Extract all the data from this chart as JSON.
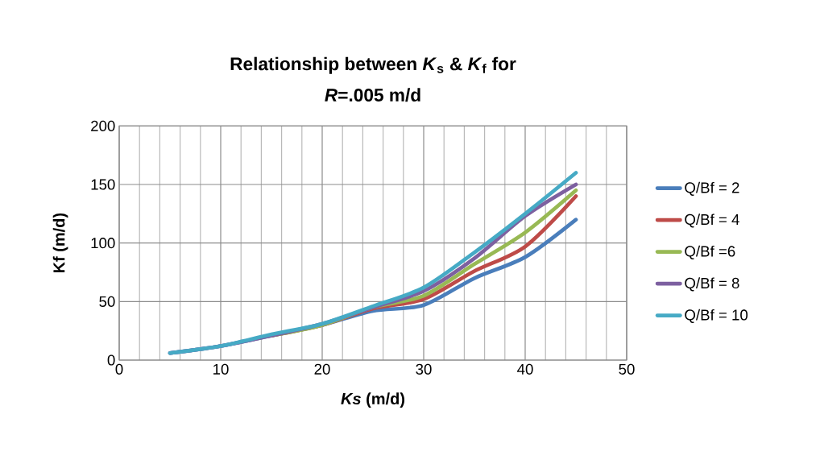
{
  "chart_data": {
    "type": "line",
    "title": "Relationship between *K*$_{s}$ & *K*$_{f}$ for",
    "subtitle": "*R*=.005 m/d",
    "xlabel": "*Ks*  (m/d)",
    "ylabel": "Kf (m/d)",
    "x": [
      5,
      10,
      15,
      20,
      25,
      30,
      35,
      40,
      45
    ],
    "series": [
      {
        "name": "Q/Bf = 2",
        "color": "#4a7ebb",
        "values": [
          6,
          12,
          21,
          30,
          42,
          47,
          70,
          88,
          120
        ]
      },
      {
        "name": "Q/Bf = 4",
        "color": "#be4b48",
        "values": [
          null,
          null,
          21,
          30,
          44,
          52,
          76,
          97,
          140
        ]
      },
      {
        "name": "Q/Bf =6",
        "color": "#98b954",
        "values": [
          null,
          null,
          21,
          30,
          45,
          55,
          82,
          109,
          145
        ]
      },
      {
        "name": "Q/Bf = 8",
        "color": "#7d60a0",
        "values": [
          6,
          12,
          21,
          31,
          45,
          59,
          87,
          123,
          150
        ]
      },
      {
        "name": "Q/Bf = 10",
        "color": "#46aac5",
        "values": [
          6,
          12,
          22,
          31,
          46,
          62,
          92,
          125,
          160
        ]
      }
    ],
    "xlim": [
      0,
      50
    ],
    "xticks": [
      0,
      10,
      20,
      30,
      40,
      50
    ],
    "ylim": [
      0,
      200
    ],
    "yticks": [
      0,
      50,
      100,
      150,
      200
    ],
    "grid": true,
    "legend": "right",
    "marker": "none",
    "line_style": "solid"
  }
}
